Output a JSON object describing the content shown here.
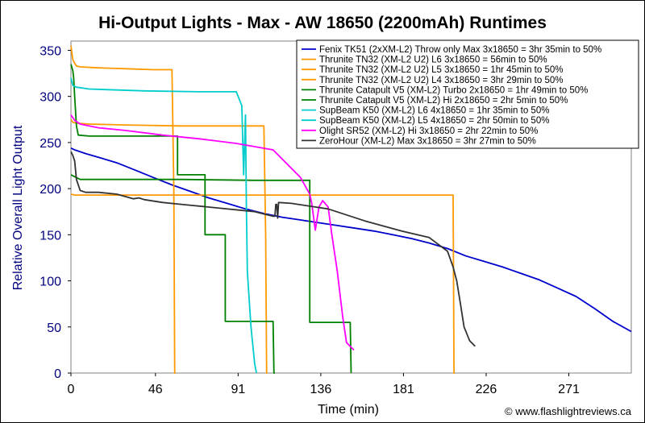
{
  "chart_data": {
    "type": "line",
    "title": "Hi-Output Lights - Max - AW 18650 (2200mAh) Runtimes",
    "xlabel": "Time (min)",
    "ylabel": "Relative Overall Light Output",
    "xlim": [
      0,
      305
    ],
    "ylim": [
      0,
      360
    ],
    "xticks": [
      0,
      46,
      91,
      136,
      181,
      226,
      271
    ],
    "yticks": [
      0,
      50,
      100,
      150,
      200,
      250,
      300,
      350
    ],
    "grid": false,
    "legend_position": "top-right",
    "watermark": "© www.flashlightreviews.ca",
    "series": [
      {
        "name": "Fenix TK51 (2xXM-L2) Throw only Max 3x18650 = 3hr 35min to 50%",
        "color": "#0000cc",
        "x": [
          0,
          2,
          8,
          15,
          25,
          35,
          45,
          55,
          65,
          75,
          85,
          95,
          105,
          115,
          125,
          135,
          145,
          155,
          165,
          175,
          185,
          195,
          205,
          215,
          225,
          235,
          245,
          255,
          265,
          275,
          285,
          295,
          305
        ],
        "y": [
          244,
          242,
          238,
          234,
          228,
          220,
          212,
          204,
          197,
          190,
          184,
          178,
          173,
          169,
          166,
          163,
          160,
          157,
          154,
          150,
          146,
          141,
          135,
          127,
          121,
          115,
          108,
          101,
          92,
          83,
          70,
          56,
          45
        ]
      },
      {
        "name": "Thrunite TN32 (XM-L2 U2) L6 3x18650 = 56min to 50%",
        "color": "#ff9900",
        "x": [
          0,
          1,
          2,
          3,
          5,
          15,
          30,
          45,
          55,
          56,
          56.5,
          57
        ],
        "y": [
          355,
          340,
          336,
          333,
          332,
          331,
          330,
          329,
          329,
          200,
          0,
          0
        ]
      },
      {
        "name": "Thrunite TN32 (XM-L2 U2) L5 3x18650 = 1hr 45min to 50%",
        "color": "#ff9900",
        "x": [
          0,
          1,
          3,
          10,
          30,
          60,
          90,
          105,
          106,
          106.5,
          107
        ],
        "y": [
          275,
          272,
          271,
          270,
          269,
          268,
          268,
          268,
          150,
          0,
          0
        ]
      },
      {
        "name": "Thrunite TN32 (XM-L2 U2) L4 3x18650 = 3hr 29min to 50%",
        "color": "#ff9900",
        "x": [
          0,
          2,
          20,
          60,
          100,
          150,
          200,
          208,
          208.5,
          209
        ],
        "y": [
          194,
          193,
          193,
          193,
          193,
          193,
          193,
          193,
          0,
          0
        ]
      },
      {
        "name": "Thrunite Catapult V5 (XM-L2) Turbo 2x18650 = 1hr 49min to 50%",
        "color": "#008000",
        "x": [
          0,
          1,
          1.5,
          2,
          3,
          4,
          10,
          30,
          50,
          58,
          58,
          70,
          73,
          73,
          82,
          84,
          84,
          110,
          110.5,
          111
        ],
        "y": [
          335,
          328,
          320,
          300,
          268,
          258,
          257,
          257,
          257,
          257,
          215,
          215,
          215,
          150,
          150,
          150,
          56,
          56,
          0,
          0
        ]
      },
      {
        "name": "Thrunite Catapult V5 (XM-L2) Hi 2x18650 = 2hr 5min to 50%",
        "color": "#008000",
        "x": [
          0,
          3,
          5,
          20,
          60,
          100,
          115,
          116,
          130,
          130,
          150,
          152,
          152.5
        ],
        "y": [
          215,
          212,
          210,
          210,
          210,
          209,
          209,
          209,
          209,
          55,
          55,
          55,
          0
        ]
      },
      {
        "name": "SupBeam K50 (XM-L2) L6 4x18650 = 1hr 35min to 50%",
        "color": "#00cccc",
        "x": [
          0,
          1,
          3,
          10,
          40,
          70,
          90,
          93,
          94,
          95,
          95.5,
          96,
          98,
          100,
          101
        ],
        "y": [
          320,
          312,
          310,
          308,
          306,
          305,
          305,
          290,
          215,
          280,
          180,
          110,
          50,
          10,
          0
        ]
      },
      {
        "name": "SupBeam K50 (XM-L2) L5 4x18650 = 2hr 50min to 50%",
        "color": "#00cccc",
        "x": [],
        "y": []
      },
      {
        "name": "Olight SR52 (XM-L2) Hi 3x18650 = 2hr 22min to 50%",
        "color": "#ff00ff",
        "x": [
          0,
          2,
          5,
          15,
          30,
          50,
          70,
          90,
          110,
          125,
          130,
          131,
          133,
          135,
          137,
          140,
          142,
          145,
          148,
          150,
          154
        ],
        "y": [
          280,
          274,
          270,
          266,
          263,
          258,
          254,
          249,
          242,
          212,
          194,
          185,
          155,
          180,
          187,
          180,
          150,
          110,
          60,
          33,
          25
        ]
      },
      {
        "name": "ZeroHour (XM-L2) Max 3x18650 = 3hr 27min to 50%",
        "color": "#333333",
        "x": [
          0,
          1,
          2,
          3,
          5,
          8,
          15,
          25,
          34,
          37,
          40,
          50,
          60,
          80,
          100,
          110,
          111,
          111.5,
          112,
          112.5,
          113,
          120,
          140,
          160,
          180,
          195,
          205,
          208,
          210,
          212,
          214,
          217,
          220
        ],
        "y": [
          240,
          236,
          230,
          210,
          198,
          196,
          196,
          194,
          189,
          190,
          188,
          185,
          183,
          179,
          175,
          170,
          170,
          183,
          183,
          168,
          185,
          184,
          178,
          165,
          154,
          147,
          132,
          115,
          100,
          75,
          50,
          35,
          29
        ]
      }
    ]
  }
}
